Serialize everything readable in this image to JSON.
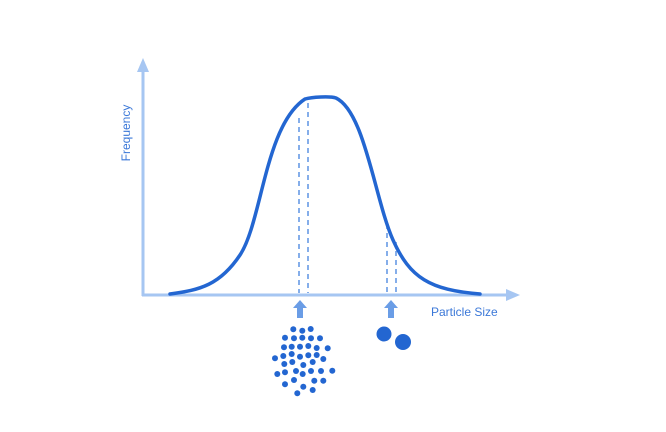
{
  "axes": {
    "y_label": "Frequency",
    "x_label": "Particle Size"
  },
  "colors": {
    "curve": "#2366d1",
    "axis": "#a6c6f2",
    "dash": "#5d93e4",
    "arrow": "#6a9de6",
    "particles": "#2366d1",
    "label": "#3b78d8"
  },
  "markers": [
    {
      "name": "small-particles",
      "particle_icon": "cluster-of-small-dots"
    },
    {
      "name": "large-particles",
      "particle_icon": "two-large-dots"
    }
  ]
}
